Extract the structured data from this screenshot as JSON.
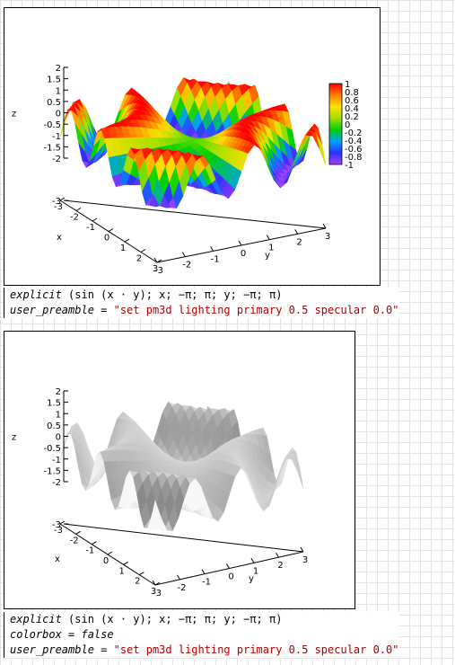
{
  "plots": [
    {
      "surface_style": "rainbow-colormap",
      "axis_titles": {
        "x": "x",
        "y": "y",
        "z": "z"
      },
      "z_ticks": [
        "2",
        "1.5",
        "1",
        "0.5",
        "0",
        "-0.5",
        "-1",
        "-1.5",
        "-2"
      ],
      "x_ticks": [
        "-3",
        "-2",
        "-1",
        "0",
        "1",
        "2",
        "3"
      ],
      "y_ticks": [
        "-3",
        "-2",
        "-1",
        "0",
        "1",
        "2",
        "3"
      ],
      "colorbar_ticks": [
        "1",
        "0.8",
        "0.6",
        "0.4",
        "0.2",
        "0",
        "-0.2",
        "-0.4",
        "-0.6",
        "-0.8",
        "-1"
      ],
      "code_lines": [
        {
          "kw": "explicit",
          "rest": " (sin (x · y); x; −π; π; y; −π; π)"
        },
        {
          "kw": "user_preamble",
          "rest": " = ",
          "str": "\"set pm3d lighting primary 0.5 specular 0.0\""
        }
      ]
    },
    {
      "surface_style": "gray-lit",
      "axis_titles": {
        "x": "x",
        "y": "y",
        "z": "z"
      },
      "z_ticks": [
        "2",
        "1.5",
        "1",
        "0.5",
        "0",
        "-0.5",
        "-1",
        "-1.5",
        "-2"
      ],
      "x_ticks": [
        "-3",
        "-2",
        "-1",
        "0",
        "1",
        "2",
        "3"
      ],
      "y_ticks": [
        "-3",
        "-2",
        "-1",
        "0",
        "1",
        "2",
        "3"
      ],
      "colorbar_ticks": [],
      "code_lines": [
        {
          "kw": "explicit",
          "rest": " (sin (x · y); x; −π; π; y; −π; π)"
        },
        {
          "kw": "colorbox",
          "rest": " = ",
          "kw2": "false"
        },
        {
          "kw": "user_preamble",
          "rest": " = ",
          "str": "\"set pm3d lighting primary 0.5 specular 0.0\""
        }
      ]
    }
  ],
  "colors": {
    "accent_string": "#b00000",
    "rainbow": [
      "#a040ff",
      "#3030ff",
      "#00a0ff",
      "#00d000",
      "#a0e000",
      "#ffe000",
      "#ff8000",
      "#ff0000"
    ]
  }
}
